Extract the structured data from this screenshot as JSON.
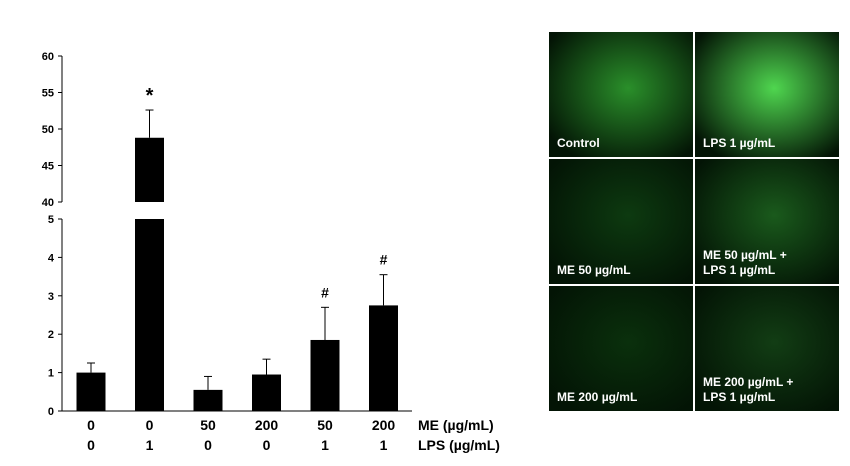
{
  "chart_data": {
    "type": "bar",
    "categories": [
      "0/0",
      "0/1",
      "50/0",
      "200/0",
      "50/1",
      "200/1"
    ],
    "x_rows": [
      {
        "label": "ME (µg/mL)",
        "values": [
          "0",
          "0",
          "50",
          "200",
          "50",
          "200"
        ]
      },
      {
        "label": "LPS (µg/mL)",
        "values": [
          "0",
          "1",
          "0",
          "0",
          "1",
          "1"
        ]
      }
    ],
    "values": [
      1.0,
      48.8,
      0.55,
      0.95,
      1.85,
      2.75
    ],
    "errors": [
      0.25,
      3.8,
      0.35,
      0.4,
      0.85,
      0.8
    ],
    "annotations": [
      "",
      "*",
      "",
      "",
      "#",
      "#"
    ],
    "axis_lower": {
      "range": [
        0,
        5
      ],
      "ticks": [
        "0",
        "1",
        "2",
        "3",
        "4",
        "5"
      ]
    },
    "axis_upper": {
      "range": [
        40,
        60
      ],
      "ticks": [
        "40",
        "45",
        "50",
        "55",
        "60"
      ]
    },
    "broken_axis": true,
    "grid": false,
    "title": "",
    "ylabel": "",
    "bar_color": "#000000"
  },
  "micrographs": {
    "background_color": "#031405",
    "panels": [
      {
        "label": "Control",
        "glow": "#2a8f2a"
      },
      {
        "label": "LPS 1 µg/mL",
        "glow": "#4fd64f"
      },
      {
        "label": "ME 50 µg/mL",
        "glow": "#0d3a10"
      },
      {
        "label": "ME 50 µg/mL +\nLPS 1 µg/mL",
        "glow": "#1a5a1c"
      },
      {
        "label": "ME 200 µg/mL",
        "glow": "#0a300c"
      },
      {
        "label": "ME 200 µg/mL +\nLPS 1 µg/mL",
        "glow": "#123d14"
      }
    ]
  }
}
